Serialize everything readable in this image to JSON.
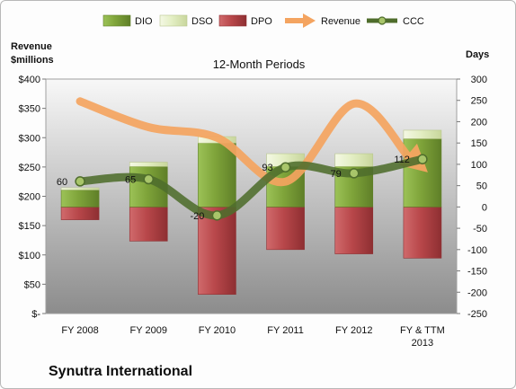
{
  "chart_data": {
    "type": "bar",
    "title": "12-Month Periods",
    "y_left_label": "Revenue $millions",
    "y_right_label": "Days",
    "company": "Synutra International",
    "categories": [
      "FY 2008",
      "FY 2009",
      "FY 2010",
      "FY 2011",
      "FY 2012",
      "FY & TTM 2013"
    ],
    "left_axis": {
      "ticks": [
        "$-",
        "$50",
        "$100",
        "$150",
        "$200",
        "$250",
        "$300",
        "$350",
        "$400"
      ],
      "ylim": [
        0,
        400
      ]
    },
    "right_axis": {
      "ticks": [
        "-250",
        "-200",
        "-150",
        "-100",
        "-50",
        "0",
        "50",
        "100",
        "150",
        "200",
        "250",
        "300"
      ],
      "ylim": [
        -250,
        300
      ]
    },
    "series": [
      {
        "name": "DIO",
        "axis": "right",
        "color": "#7fa43a",
        "values": [
          40,
          95,
          150,
          95,
          95,
          160
        ]
      },
      {
        "name": "DSO",
        "axis": "right",
        "color": "#e3eec3",
        "values": [
          5,
          10,
          15,
          30,
          30,
          20
        ]
      },
      {
        "name": "DPO",
        "axis": "right",
        "color": "#b8474a",
        "values": [
          -30,
          -80,
          -205,
          -100,
          -110,
          -120
        ]
      },
      {
        "name": "Revenue",
        "axis": "left",
        "color": "#f4a460",
        "values": [
          362,
          318,
          300,
          225,
          358,
          250
        ]
      },
      {
        "name": "CCC",
        "axis": "right",
        "color": "#5a7a35",
        "values": [
          60,
          65,
          -20,
          93,
          79,
          112
        ]
      }
    ],
    "data_labels": [
      "60",
      "65",
      "-20",
      "93",
      "79",
      "112"
    ],
    "legend_position": "top",
    "grid": false
  }
}
